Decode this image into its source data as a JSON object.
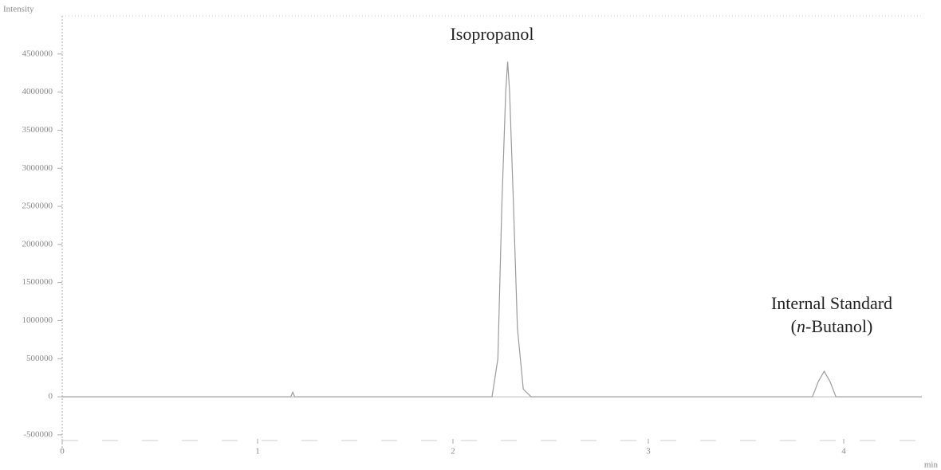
{
  "chart_data": {
    "type": "line",
    "y_label": "Intensity",
    "x_label": "min",
    "x": [
      0,
      1.17,
      1.18,
      1.19,
      2.2,
      2.23,
      2.25,
      2.27,
      2.28,
      2.29,
      2.31,
      2.33,
      2.36,
      2.4,
      3.84,
      3.87,
      3.9,
      3.93,
      3.96,
      4.4
    ],
    "series": [
      {
        "color": "#9a9a9a",
        "values": [
          0,
          0,
          60000,
          0,
          0,
          500000,
          2500000,
          4000000,
          4400000,
          4000000,
          2500000,
          900000,
          100000,
          0,
          0,
          200000,
          335000,
          200000,
          0,
          0
        ]
      }
    ],
    "xlim": [
      0,
      4.4
    ],
    "ylim": [
      -700000,
      5000000
    ],
    "xticks": [
      0,
      1,
      2,
      3,
      4
    ],
    "yticks": [
      -500000,
      0,
      500000,
      1000000,
      1500000,
      2000000,
      2500000,
      3000000,
      3500000,
      4000000,
      4500000
    ],
    "grid": false,
    "annotations": [
      {
        "lines": [
          [
            "Isopropanol"
          ]
        ]
      },
      {
        "lines": [
          [
            "Internal Standard"
          ],
          [
            "(",
            "n",
            "-Butanol)"
          ]
        ]
      }
    ]
  }
}
